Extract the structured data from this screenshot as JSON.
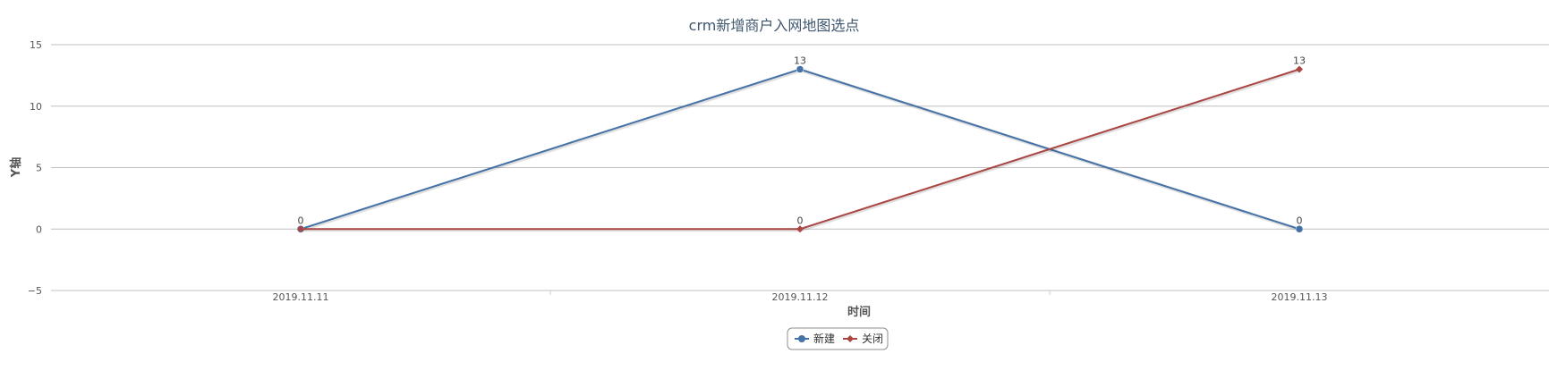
{
  "chart_data": {
    "type": "line",
    "title": "crm新增商户入网地图选点",
    "xlabel": "时间",
    "ylabel": "Y轴",
    "categories": [
      "2019.11.11",
      "2019.11.12",
      "2019.11.13"
    ],
    "ylim": [
      -5,
      15
    ],
    "yticks": [
      -5,
      0,
      5,
      10,
      15
    ],
    "ytick_labels": [
      "−5",
      "0",
      "5",
      "10",
      "15"
    ],
    "grid": true,
    "legend_position": "bottom-center",
    "series": [
      {
        "name": "新建",
        "values": [
          0,
          13,
          0
        ],
        "color": "#4572a7",
        "marker": "circle"
      },
      {
        "name": "关闭",
        "values": [
          0,
          0,
          13
        ],
        "color": "#aa4643",
        "marker": "diamond"
      }
    ]
  }
}
